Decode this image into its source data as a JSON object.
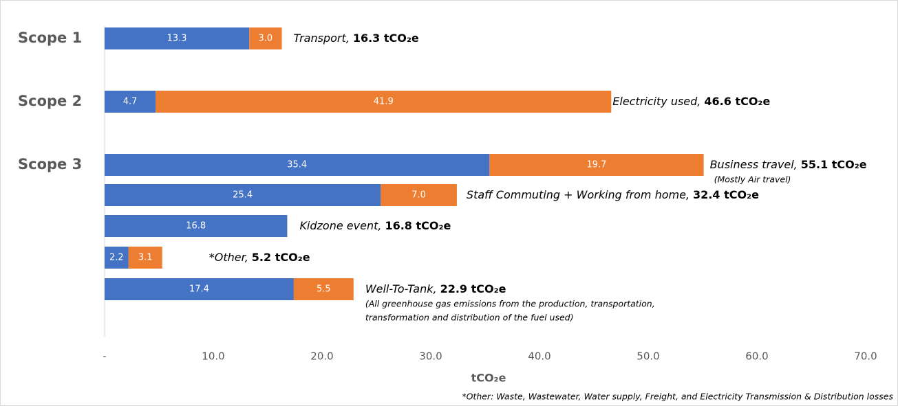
{
  "chart_data": {
    "type": "stacked-barh",
    "categories": [
      "Scope 1",
      "Scope 2",
      "Scope 3",
      null,
      null,
      null,
      null
    ],
    "series": [
      {
        "color": "#4472c4",
        "values": [
          13.3,
          4.7,
          35.4,
          25.4,
          16.8,
          2.2,
          17.4
        ]
      },
      {
        "color": "#ed7d31",
        "values": [
          3.0,
          41.9,
          19.7,
          7.0,
          null,
          3.1,
          5.5
        ],
        "value_labels": [
          "3.0",
          "41.9",
          "19.7",
          "7.0",
          null,
          "3.1",
          "5.5"
        ]
      }
    ],
    "annotations": [
      {
        "name": "Transport,",
        "total": "16.3 tCO₂e"
      },
      {
        "name": "Electricity used,",
        "total": "46.6 tCO₂e"
      },
      {
        "name": "Business travel,",
        "total": "55.1 tCO₂e",
        "notes": [
          "(Mostly Air travel)"
        ]
      },
      {
        "name": "Staff Commuting + Working from home,",
        "total": "32.4 tCO₂e"
      },
      {
        "name": "Kidzone event,",
        "total": "16.8 tCO₂e"
      },
      {
        "name": "*Other,",
        "total": "5.2 tCO₂e"
      },
      {
        "name": "Well-To-Tank,",
        "total": "22.9 tCO₂e",
        "notes": [
          "(All greenhouse gas emissions from the production, transportation,",
          "transformation and distribution of the fuel used)"
        ]
      }
    ],
    "xlim": [
      0,
      70
    ],
    "xticks": [
      {
        "value": 0,
        "label": "-"
      },
      {
        "value": 10,
        "label": "10.0"
      },
      {
        "value": 20,
        "label": "20.0"
      },
      {
        "value": 30,
        "label": "30.0"
      },
      {
        "value": 40,
        "label": "40.0"
      },
      {
        "value": 50,
        "label": "50.0"
      },
      {
        "value": 60,
        "label": "60.0"
      },
      {
        "value": 70,
        "label": "70.0"
      }
    ],
    "xlabel": "tCO₂e",
    "footnote": "*Other: Waste, Wastewater, Water supply, Freight, and Electricity Transmission & Distribution losses",
    "grid": false
  }
}
